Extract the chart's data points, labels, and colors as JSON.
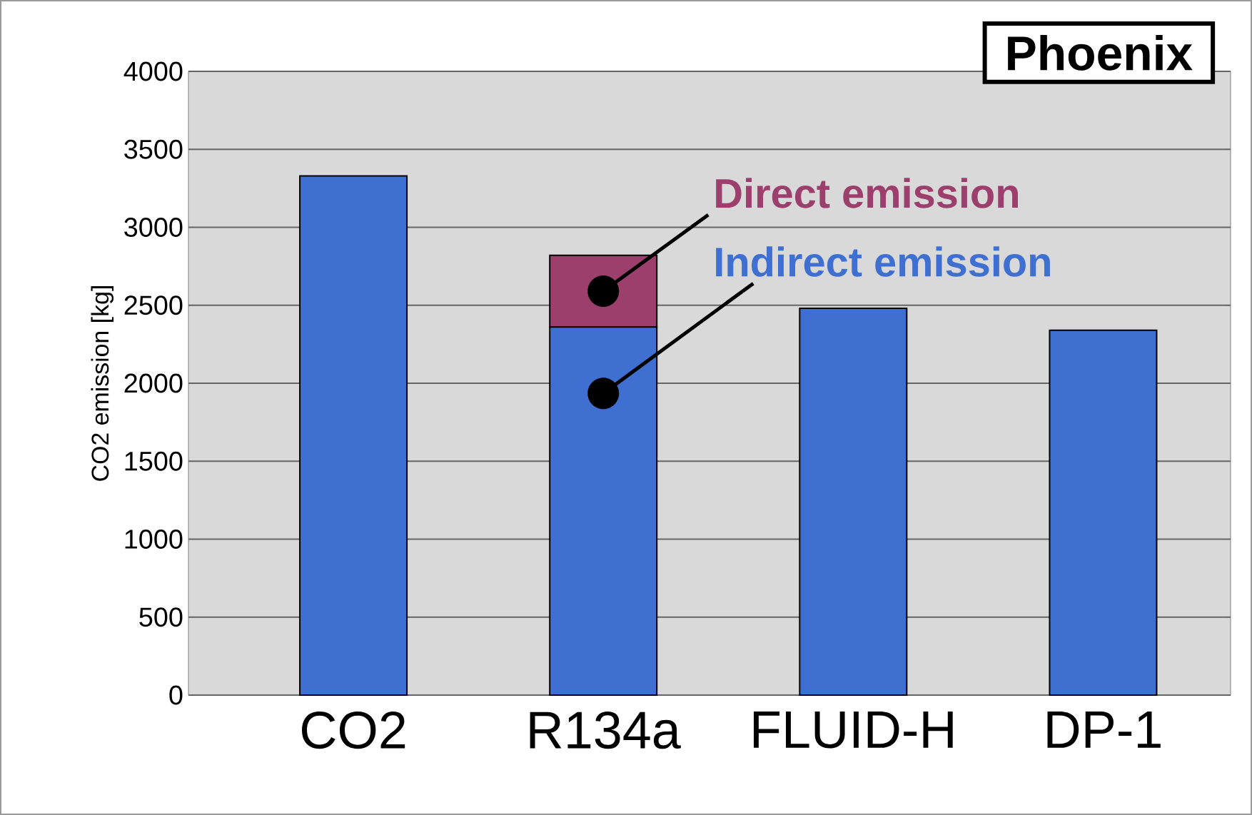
{
  "chart_data": {
    "type": "bar",
    "stacked": true,
    "ylabel": "CO2 emission [kg]",
    "categories": [
      "CO2",
      "R134a",
      "FLUID-H",
      "DP-1"
    ],
    "series": [
      {
        "name": "Indirect emission",
        "color": "#3f6fd0",
        "values": [
          3330,
          2360,
          2480,
          2340
        ]
      },
      {
        "name": "Direct emission",
        "color": "#9c3f6c",
        "values": [
          null,
          460,
          null,
          null
        ]
      }
    ],
    "ylim": [
      0,
      4000
    ],
    "yticks": [
      0,
      500,
      1000,
      1500,
      2000,
      2500,
      3000,
      3500,
      4000
    ],
    "grid": "y",
    "annotations": [
      "Phoenix"
    ]
  }
}
